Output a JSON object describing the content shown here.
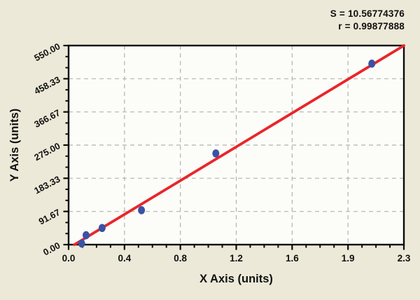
{
  "stats": {
    "s_line": "S = 10.56774376",
    "r_line": "r = 0.99877888"
  },
  "chart_data": {
    "type": "scatter",
    "title": "",
    "xlabel": "X Axis (units)",
    "ylabel": "Y Axis (units)",
    "xlim": [
      0,
      2.3
    ],
    "ylim": [
      0,
      550
    ],
    "x_tick_labels": [
      "0.0",
      "0.4",
      "0.8",
      "1.2",
      "1.6",
      "1.9",
      "2.3"
    ],
    "y_tick_labels": [
      "0.00",
      "91.67",
      "183.33",
      "275.00",
      "366.67",
      "458.33",
      "550.00"
    ],
    "x_minor_divisions_per_major": 4,
    "y_minor_divisions_per_major": 3,
    "grid": "dashed",
    "legend": "none",
    "points": [
      {
        "x": 0.09,
        "y": 3
      },
      {
        "x": 0.12,
        "y": 26
      },
      {
        "x": 0.23,
        "y": 46
      },
      {
        "x": 0.5,
        "y": 95
      },
      {
        "x": 1.01,
        "y": 252
      },
      {
        "x": 2.08,
        "y": 500
      }
    ],
    "regression_line": {
      "x1": 0.04,
      "y1": 0,
      "x2": 2.3,
      "y2": 550,
      "S": "10.56774376",
      "r": "0.99877888"
    },
    "colors": {
      "background": "#ece9d8",
      "plot_background": "#fcfcf8",
      "axis": "#0a0a0a",
      "grid": "#b2b2b2",
      "point": "#3a52a5",
      "line": "#e8262b",
      "text": "#101010"
    }
  }
}
